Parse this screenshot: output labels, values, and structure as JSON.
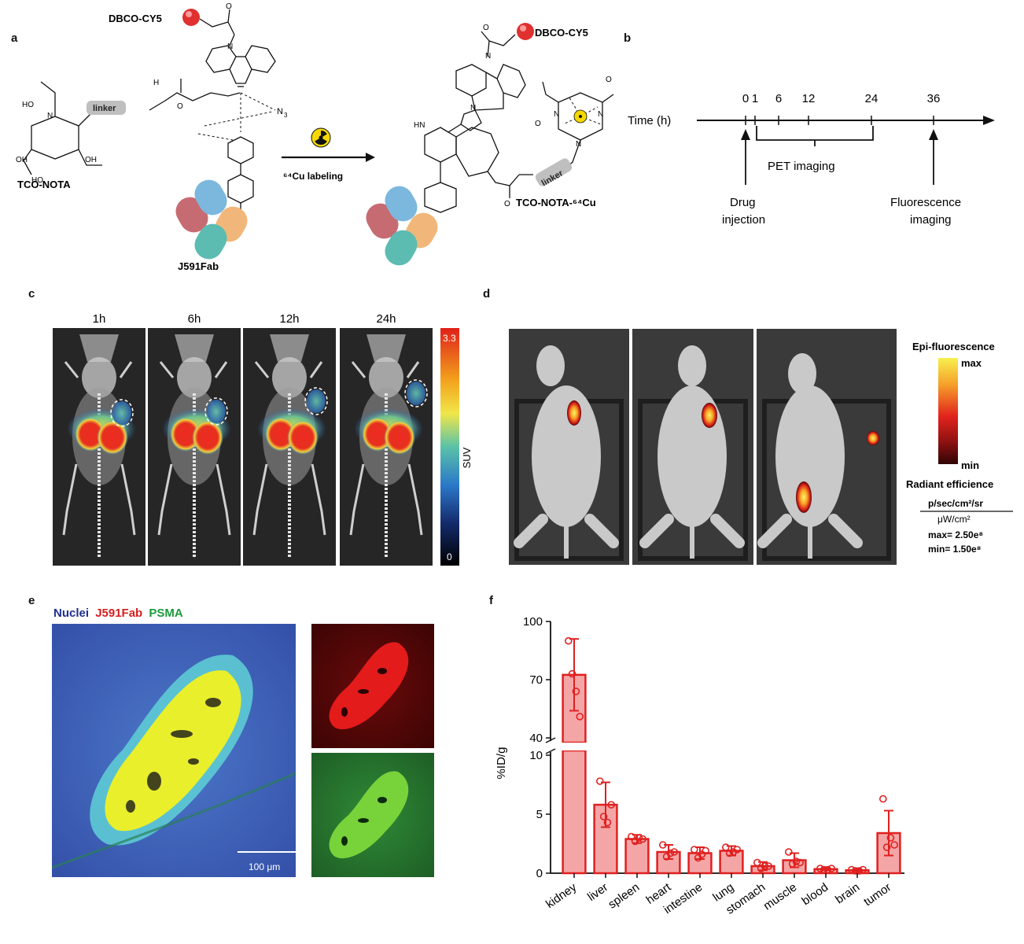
{
  "panel_labels": {
    "a": "a",
    "b": "b",
    "c": "c",
    "d": "d",
    "e": "e",
    "f": "f"
  },
  "panel_a": {
    "dbco_label_top": "DBCO-CY5",
    "dbco_label_product": "DBCO-CY5",
    "linker_left": "linker",
    "linker_right": "linker",
    "tco_nota": "TCO-NOTA",
    "tco_nota_cu": "TCO-NOTA-⁶⁴Cu",
    "cu_labeling": "⁶⁴Cu labeling",
    "fab": "J591Fab",
    "n3": "N",
    "n3_sub": "3",
    "chem": {
      "hooc1": "HO",
      "hooc2": "HO",
      "oh1": "OH",
      "oh2": "OH",
      "o": "O",
      "h": "H",
      "n": "N",
      "hn": "HN"
    }
  },
  "panel_b": {
    "axis_label": "Time (h)",
    "ticks": [
      "0",
      "1",
      "6",
      "12",
      "24",
      "36"
    ],
    "pet": "PET imaging",
    "drug1": "Drug",
    "drug2": "injection",
    "fluo1": "Fluorescence",
    "fluo2": "imaging"
  },
  "panel_c": {
    "times": [
      "1h",
      "6h",
      "12h",
      "24h"
    ],
    "scale_max": "3.3",
    "scale_min": "0",
    "scale_label": "SUV"
  },
  "panel_d": {
    "title": "Epi-fluorescence",
    "max": "max",
    "min": "min",
    "radiant": "Radiant efficience",
    "unit_num": "p/sec/cm²/sr",
    "unit_den": "μW/cm²",
    "max_val": "max= 2.50e⁸",
    "min_val": "min= 1.50e⁸"
  },
  "panel_e": {
    "legend": [
      "Nuclei",
      "J591Fab",
      "PSMA"
    ],
    "legend_colors": [
      "#1f2f8f",
      "#d42020",
      "#1d9a3c"
    ],
    "scalebar": "100 μm"
  },
  "chart_data": {
    "type": "bar",
    "ylabel": "%ID/g",
    "xlabel": "",
    "y_ticks_lower": [
      0,
      5,
      10
    ],
    "y_ticks_upper": [
      40,
      70,
      100
    ],
    "ylim_lower": [
      0,
      10
    ],
    "ylim_upper": [
      40,
      100
    ],
    "categories": [
      "kidney",
      "liver",
      "spleen",
      "heart",
      "intestine",
      "lung",
      "stomach",
      "muscle",
      "blood",
      "brain",
      "tumor"
    ],
    "values": [
      72.5,
      5.8,
      2.9,
      1.8,
      1.7,
      1.9,
      0.6,
      1.1,
      0.35,
      0.25,
      3.4
    ],
    "errors": [
      18.5,
      1.9,
      0.35,
      0.6,
      0.5,
      0.4,
      0.35,
      0.6,
      0.1,
      0.1,
      1.9
    ],
    "points": [
      [
        90,
        73,
        64,
        51
      ],
      [
        7.8,
        4.8,
        4.3,
        5.8
      ],
      [
        3.1,
        2.7,
        3.0,
        2.9
      ],
      [
        2.4,
        1.4,
        1.7,
        1.8
      ],
      [
        2.0,
        1.3,
        1.6,
        1.9
      ],
      [
        2.2,
        1.7,
        1.8,
        2.0
      ],
      [
        0.9,
        0.4,
        0.6,
        0.6
      ],
      [
        1.8,
        0.8,
        1.0,
        0.9
      ],
      [
        0.4,
        0.3,
        0.3,
        0.4
      ],
      [
        0.3,
        0.2,
        0.2,
        0.3
      ],
      [
        6.3,
        2.2,
        3.0,
        2.4
      ]
    ],
    "bar_color": "#f4a6a6",
    "edge_color": "#e02020"
  }
}
